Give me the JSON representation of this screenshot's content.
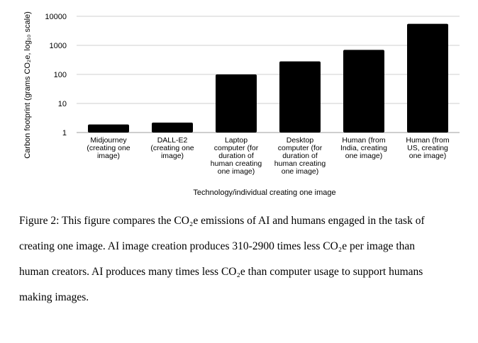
{
  "chart_data": {
    "type": "bar",
    "xlabel": "Technology/individual creating one image",
    "ylabel": "Carbon footprint (grams CO₂e, log₁₀ scale)",
    "yscale": "log",
    "ylim": [
      1,
      10000
    ],
    "yticks": [
      "1",
      "10",
      "100",
      "1000",
      "10000"
    ],
    "grid": true,
    "categories": [
      [
        "Midjourney",
        "(creating one",
        "image)"
      ],
      [
        "DALL-E2",
        "(creating one",
        "image)"
      ],
      [
        "Laptop",
        "computer (for",
        "duration of",
        "human creating",
        "one image)"
      ],
      [
        "Desktop",
        "computer (for",
        "duration of",
        "human creating",
        "one image)"
      ],
      [
        "Human (from",
        "India, creating",
        "one image)"
      ],
      [
        "Human (from",
        "US, creating",
        "one image)"
      ]
    ],
    "values": [
      1.9,
      2.2,
      100,
      280,
      700,
      5500
    ],
    "bar_color": "#000000"
  },
  "caption": {
    "line1": "Figure 2: This figure compares the CO₂e emissions of AI and humans engaged in the task of",
    "line2": "creating one image. AI image creation produces 310-2900 times less CO₂e per image than",
    "line3": "human creators. AI produces many times less CO₂e than computer usage to support humans",
    "line4": "making images."
  }
}
